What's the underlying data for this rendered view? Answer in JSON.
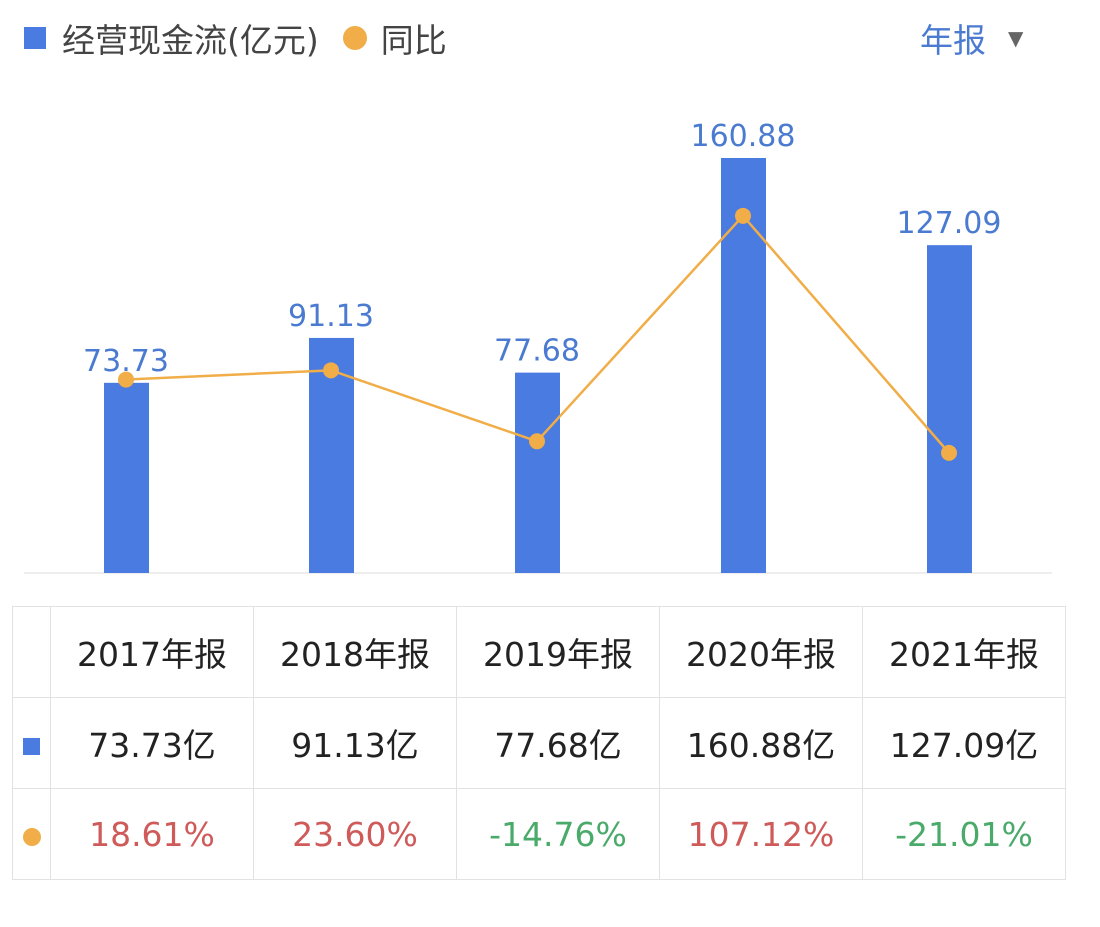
{
  "legend": {
    "bar_label": "经营现金流(亿元)",
    "line_label": "同比"
  },
  "period_selector": {
    "label": "年报",
    "icon": "caret-down-icon"
  },
  "colors": {
    "bar": "#4a7be0",
    "line": "#f0ad48",
    "positive": "#cf5a5a",
    "negative": "#4aaa6a",
    "label": "#4a7bd0"
  },
  "chart_data": {
    "type": "bar+line",
    "categories": [
      "2017年报",
      "2018年报",
      "2019年报",
      "2020年报",
      "2021年报"
    ],
    "series": [
      {
        "name": "经营现金流(亿元)",
        "type": "bar",
        "values": [
          73.73,
          91.13,
          77.68,
          160.88,
          127.09
        ],
        "labels": [
          "73.73",
          "91.13",
          "77.68",
          "160.88",
          "127.09"
        ]
      },
      {
        "name": "同比",
        "type": "line",
        "values": [
          18.61,
          23.6,
          -14.76,
          107.12,
          -21.01
        ]
      }
    ],
    "grid": false,
    "legend": "top-left"
  },
  "table": {
    "headers": [
      "2017年报",
      "2018年报",
      "2019年报",
      "2020年报",
      "2021年报"
    ],
    "bar_row": [
      "73.73亿",
      "91.13亿",
      "77.68亿",
      "160.88亿",
      "127.09亿"
    ],
    "yoy_row": [
      "18.61%",
      "23.60%",
      "-14.76%",
      "107.12%",
      "-21.01%"
    ]
  }
}
